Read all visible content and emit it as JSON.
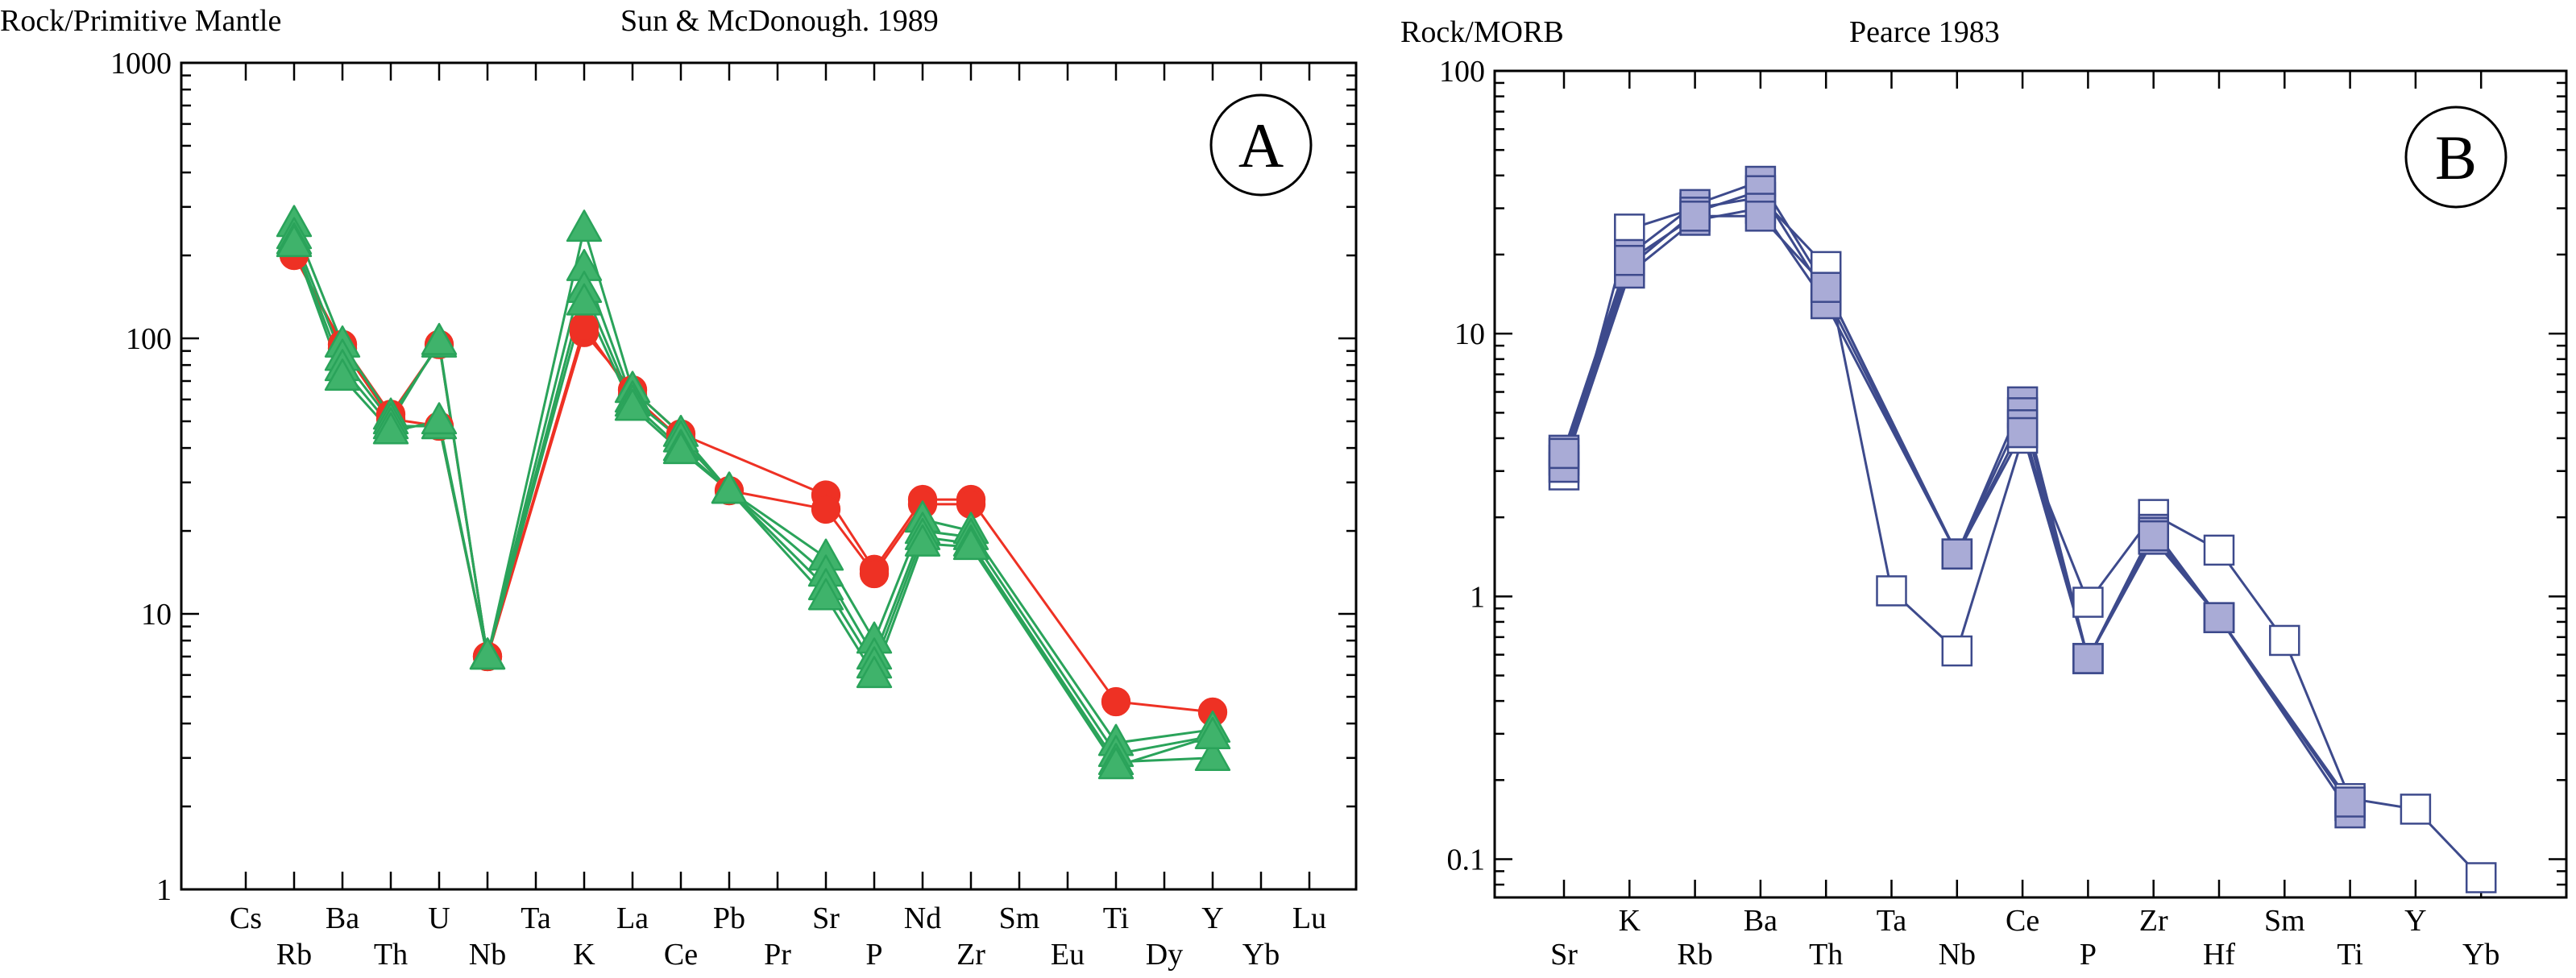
{
  "chart_data": [
    {
      "panel": "A",
      "type": "line",
      "title": "Sun & McDonough. 1989",
      "ylabel": "Rock/Primitive Mantle",
      "xlabel": "",
      "yscale": "log",
      "ylim": [
        1,
        1000
      ],
      "yticks": [
        "1",
        "10",
        "100",
        "1000"
      ],
      "categories": [
        "Cs",
        "Rb",
        "Ba",
        "Th",
        "U",
        "Nb",
        "Ta",
        "K",
        "La",
        "Ce",
        "Pb",
        "Pr",
        "Sr",
        "P",
        "Nd",
        "Zr",
        "Sm",
        "Eu",
        "Ti",
        "Dy",
        "Y",
        "Yb",
        "Lu"
      ],
      "grid": false,
      "series": [
        {
          "color": "#ee3124",
          "marker": "circle",
          "values": [
            null,
            200,
            95,
            53,
            95,
            7,
            null,
            105,
            65,
            45,
            null,
            null,
            27,
            14.5,
            26,
            26,
            null,
            null,
            4.8,
            null,
            4.4,
            null,
            null
          ]
        },
        {
          "color": "#ee3124",
          "marker": "circle",
          "values": [
            null,
            205,
            92,
            51,
            48,
            7,
            null,
            110,
            62,
            43,
            28,
            null,
            24,
            14,
            25,
            25,
            null,
            null,
            null,
            null,
            null,
            null,
            null
          ]
        },
        {
          "color": "#2aa35a",
          "marker": "triangle",
          "values": [
            null,
            260,
            95,
            52,
            95,
            7,
            null,
            250,
            65,
            45,
            28,
            null,
            16,
            8,
            22,
            20,
            null,
            null,
            3.4,
            null,
            3.8,
            null,
            null
          ]
        },
        {
          "color": "#2aa35a",
          "marker": "triangle",
          "values": [
            null,
            235,
            85,
            50,
            97,
            7,
            null,
            180,
            60,
            43,
            28,
            null,
            14,
            7,
            20,
            19,
            null,
            null,
            3.1,
            null,
            3.6,
            null,
            null
          ]
        },
        {
          "color": "#2aa35a",
          "marker": "triangle",
          "values": [
            null,
            225,
            78,
            48,
            48,
            7,
            null,
            150,
            58,
            40,
            28,
            null,
            12.5,
            6.5,
            19,
            18,
            null,
            null,
            2.9,
            null,
            3.0,
            null,
            null
          ]
        },
        {
          "color": "#2aa35a",
          "marker": "triangle",
          "values": [
            null,
            220,
            72,
            46,
            50,
            7,
            null,
            135,
            56,
            39,
            28,
            null,
            11.5,
            6,
            18,
            17.5,
            null,
            null,
            2.8,
            null,
            3.6,
            null,
            null
          ]
        }
      ]
    },
    {
      "panel": "B",
      "type": "line",
      "title": "Pearce 1983",
      "ylabel": "Rock/MORB",
      "xlabel": "",
      "yscale": "log",
      "ylim": [
        0.0715,
        100
      ],
      "yticks": [
        "0.1",
        "1",
        "10",
        "100"
      ],
      "categories": [
        "Sr",
        "K",
        "Rb",
        "Ba",
        "Th",
        "Ta",
        "Nb",
        "Ce",
        "P",
        "Zr",
        "Hf",
        "Sm",
        "Ti",
        "Y",
        "Yb"
      ],
      "grid": false,
      "series": [
        {
          "color": "#3d4a8c",
          "marker": "square-open",
          "values": [
            2.9,
            25,
            30,
            33,
            18,
            1.05,
            0.62,
            4.0,
            0.95,
            2.05,
            1.5,
            0.68,
            0.17,
            0.155,
            0.085
          ]
        },
        {
          "color": "#3d4a8c",
          "marker": "square-filled",
          "values": [
            3.6,
            20,
            31,
            38,
            15,
            null,
            1.45,
            5.5,
            0.58,
            1.8,
            0.83,
            null,
            0.16,
            null,
            null
          ]
        },
        {
          "color": "#3d4a8c",
          "marker": "square-filled",
          "values": [
            3.3,
            18,
            29,
            35,
            14,
            null,
            1.45,
            5.0,
            0.58,
            1.75,
            0.83,
            null,
            0.16,
            null,
            null
          ]
        },
        {
          "color": "#3d4a8c",
          "marker": "square-filled",
          "values": [
            3.1,
            17,
            27,
            30,
            13,
            null,
            1.45,
            4.5,
            0.58,
            1.65,
            0.83,
            null,
            0.15,
            null,
            null
          ]
        },
        {
          "color": "#3d4a8c",
          "marker": "square-filled",
          "values": [
            3.5,
            19,
            28,
            28,
            15,
            null,
            1.45,
            4.2,
            0.58,
            1.7,
            0.83,
            null,
            0.165,
            null,
            null
          ]
        }
      ]
    }
  ],
  "colors": {
    "axis": "#000000",
    "square_fill": "#a9abd6",
    "square_open_fill": "#ffffff"
  }
}
